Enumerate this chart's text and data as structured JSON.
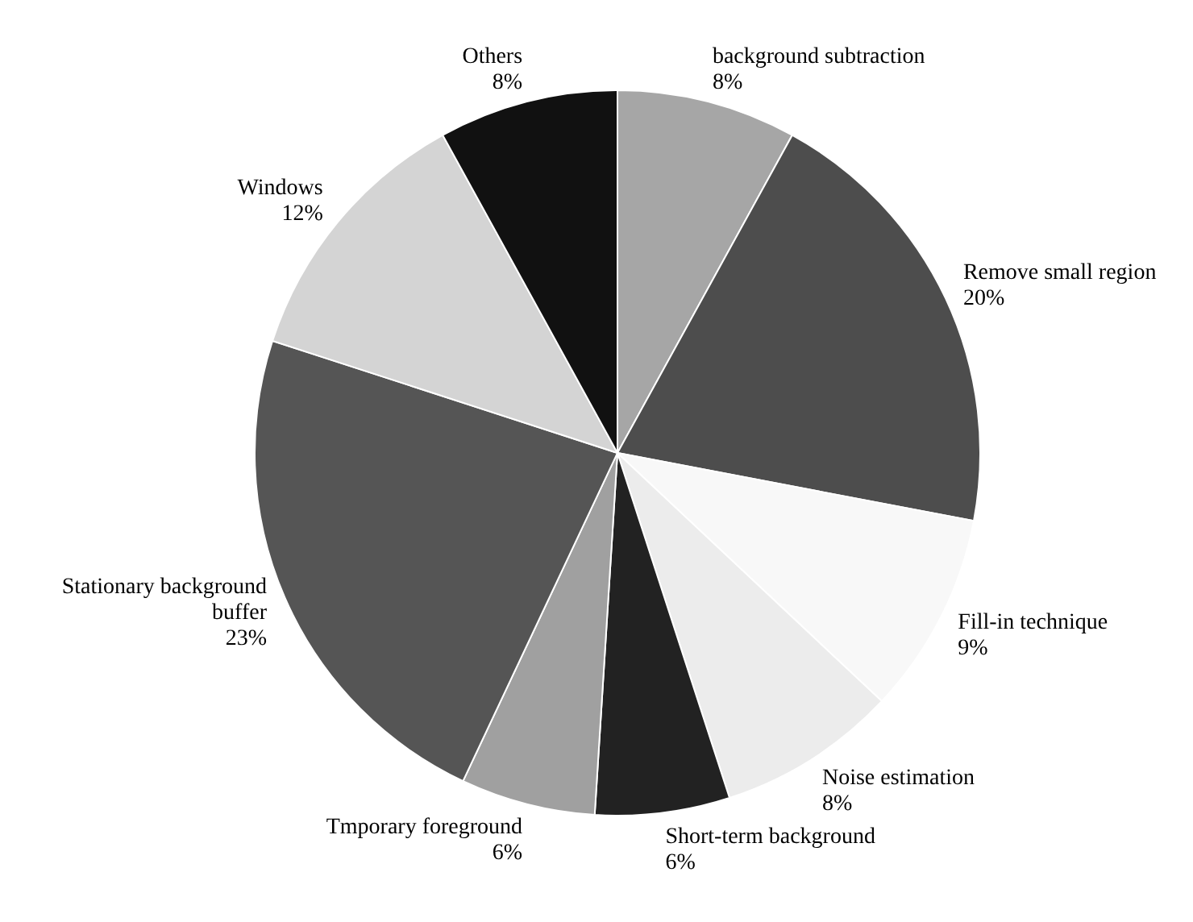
{
  "chart_data": {
    "type": "pie",
    "categories": [
      "background subtraction",
      "Remove small region",
      "Fill-in technique",
      "Noise estimation",
      "Short-term background",
      "Tmporary foreground",
      "Stationary background buffer",
      "Windows",
      "Others"
    ],
    "values": [
      8,
      20,
      9,
      8,
      6,
      6,
      23,
      12,
      8
    ],
    "colors": [
      "#a6a6a6",
      "#4d4d4d",
      "#f8f8f8",
      "#ececec",
      "#222222",
      "#a0a0a0",
      "#555555",
      "#d4d4d4",
      "#111111"
    ],
    "value_labels": [
      "8%",
      "20%",
      "9%",
      "8%",
      "6%",
      "6%",
      "23%",
      "12%",
      "8%"
    ],
    "legend": false
  }
}
